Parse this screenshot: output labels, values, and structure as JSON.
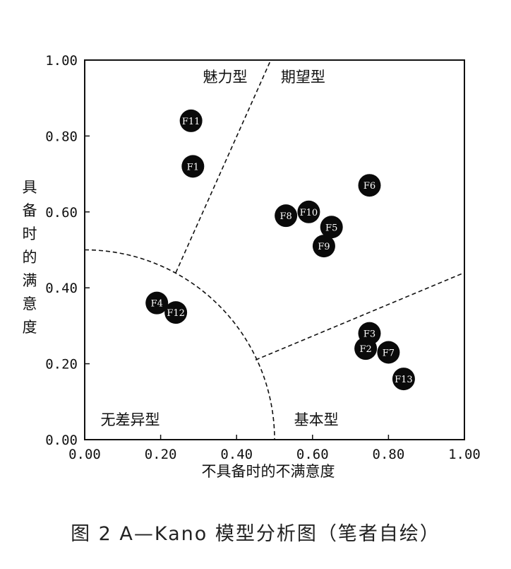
{
  "caption": "图 2  A—Kano 模型分析图（笔者自绘）",
  "chart_data": {
    "type": "scatter",
    "xlabel": "不具备时的不满意度",
    "ylabel": "具备时的满意度",
    "xlim": [
      0,
      1
    ],
    "ylim": [
      0,
      1
    ],
    "xticks": [
      "0.00",
      "0.20",
      "0.40",
      "0.60",
      "0.80",
      "1.00"
    ],
    "yticks": [
      "0.00",
      "0.20",
      "0.40",
      "0.60",
      "0.80",
      "1.00"
    ],
    "grid": false,
    "regions": [
      "魅力型",
      "期望型",
      "无差异型",
      "基本型"
    ],
    "boundaries": {
      "circle_radius": 0.5,
      "attractive_expected_line": [
        [
          0.24,
          0.44
        ],
        [
          0.49,
          1.0
        ]
      ],
      "expected_basic_line": [
        [
          0.45,
          0.21
        ],
        [
          1.0,
          0.44
        ]
      ]
    },
    "points": [
      {
        "label": "F1",
        "x": 0.285,
        "y": 0.72
      },
      {
        "label": "F2",
        "x": 0.74,
        "y": 0.24
      },
      {
        "label": "F3",
        "x": 0.75,
        "y": 0.28
      },
      {
        "label": "F4",
        "x": 0.19,
        "y": 0.36
      },
      {
        "label": "F5",
        "x": 0.65,
        "y": 0.56
      },
      {
        "label": "F6",
        "x": 0.75,
        "y": 0.67
      },
      {
        "label": "F7",
        "x": 0.8,
        "y": 0.23
      },
      {
        "label": "F8",
        "x": 0.53,
        "y": 0.59
      },
      {
        "label": "F9",
        "x": 0.63,
        "y": 0.51
      },
      {
        "label": "F10",
        "x": 0.59,
        "y": 0.6
      },
      {
        "label": "F11",
        "x": 0.28,
        "y": 0.84
      },
      {
        "label": "F12",
        "x": 0.24,
        "y": 0.335
      },
      {
        "label": "F13",
        "x": 0.84,
        "y": 0.16
      }
    ]
  }
}
